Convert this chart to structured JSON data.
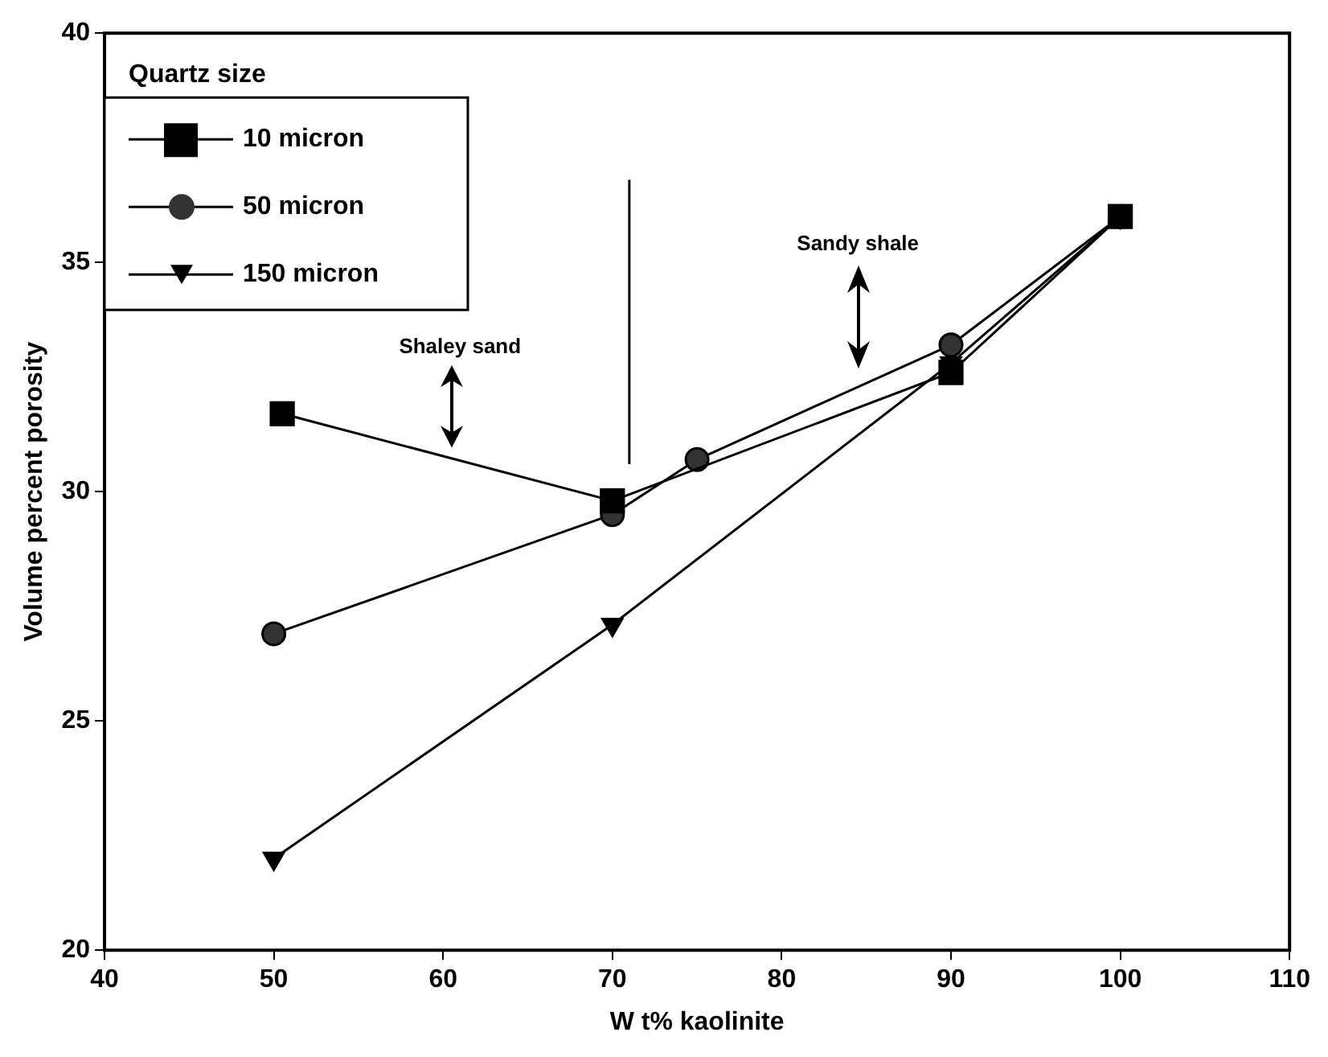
{
  "chart_data": {
    "type": "line",
    "xlabel": "W t% kaolinite",
    "ylabel": "Volume percent porosity",
    "legend_title": "Quartz size",
    "legend": "top left",
    "grid": false,
    "series": [
      {
        "name": "10 micron",
        "color": "#000000",
        "marker": "square",
        "x": [
          50.5,
          70,
          90,
          100
        ],
        "values": [
          31.7,
          29.8,
          32.6,
          36.0
        ]
      },
      {
        "name": "50 micron",
        "color": "#333333",
        "marker": "circle",
        "x": [
          50,
          70,
          75,
          90,
          100
        ],
        "values": [
          26.9,
          29.5,
          30.7,
          33.2,
          36.0
        ]
      },
      {
        "name": "150 micron",
        "color": "#000000",
        "marker": "triangle",
        "x": [
          50,
          70,
          90,
          100
        ],
        "values": [
          22.0,
          27.1,
          32.8,
          36.0
        ]
      }
    ],
    "xlim": [
      40,
      110
    ],
    "xticks": [
      40,
      50,
      60,
      70,
      80,
      90,
      100,
      110
    ],
    "ylim": [
      20,
      40
    ],
    "yticks": [
      20,
      25,
      30,
      35,
      40
    ],
    "ref_lines": [
      {
        "axis": "x",
        "value": 71,
        "color": "#000000"
      }
    ],
    "annotations": [
      "Shaley sand",
      "Sandy shale"
    ]
  }
}
